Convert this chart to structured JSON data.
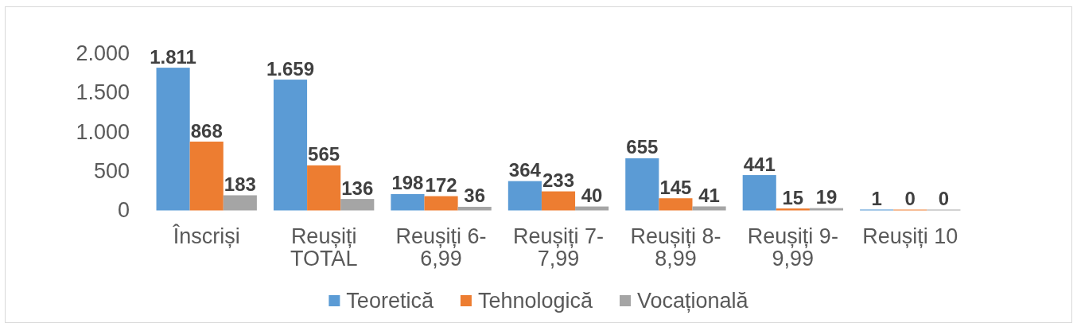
{
  "chart_data": {
    "type": "bar",
    "categories": [
      "Înscriși",
      "Reușiți TOTAL",
      "Reușiți 6-6,99",
      "Reușiți 7-7,99",
      "Reușiți 8-8,99",
      "Reușiți 9-9,99",
      "Reușiți 10"
    ],
    "series": [
      {
        "name": "Teoretică",
        "color": "#5b9bd5",
        "values": [
          1811,
          1659,
          198,
          364,
          655,
          441,
          1
        ],
        "value_labels": [
          "1.811",
          "1.659",
          "198",
          "364",
          "655",
          "441",
          "1"
        ]
      },
      {
        "name": "Tehnologică",
        "color": "#ed7d31",
        "values": [
          868,
          565,
          172,
          233,
          145,
          15,
          0
        ],
        "value_labels": [
          "868",
          "565",
          "172",
          "233",
          "145",
          "15",
          "0"
        ]
      },
      {
        "name": "Vocațională",
        "color": "#a5a5a5",
        "values": [
          183,
          136,
          36,
          40,
          41,
          19,
          0
        ],
        "value_labels": [
          "183",
          "136",
          "36",
          "40",
          "41",
          "19",
          "0"
        ]
      }
    ],
    "ylim": [
      0,
      2000
    ],
    "yticks": [
      0,
      500,
      {
        "value": 1000,
        "label": "1.000"
      },
      {
        "value": 1500,
        "label": "1.500"
      },
      {
        "value": 2000,
        "label": "2.000"
      }
    ],
    "legend": "bottom"
  }
}
